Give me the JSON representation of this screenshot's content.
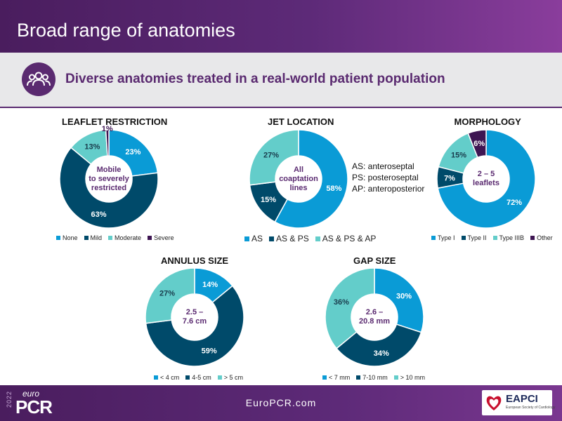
{
  "header": {
    "title": "Broad range of anatomies"
  },
  "band": {
    "subtitle": "Diverse anatomies treated in a real-world patient population",
    "icon": "people-group-icon"
  },
  "colors": {
    "dark": "#004a6a",
    "mid": "#0a9bd6",
    "light": "#63cdca",
    "purple": "#3e1552"
  },
  "chart_data": [
    {
      "type": "pie",
      "title": "LEAFLET RESTRICTION",
      "center_label": [
        "Mobile",
        "to severely",
        "restricted"
      ],
      "categories": [
        "None",
        "Mild",
        "Moderate",
        "Severe"
      ],
      "values": [
        23,
        63,
        13,
        1
      ],
      "labels": [
        "23%",
        "63%",
        "13%",
        "1%"
      ],
      "colors": [
        "#0a9bd6",
        "#004a6a",
        "#63cdca",
        "#3e1552"
      ],
      "legend": "bottom"
    },
    {
      "type": "pie",
      "title": "JET LOCATION",
      "center_label": [
        "All",
        "coaptation",
        "lines"
      ],
      "categories": [
        "AS",
        "AS & PS",
        "AS & PS & AP"
      ],
      "values": [
        58,
        15,
        27
      ],
      "labels": [
        "58%",
        "15%",
        "27%"
      ],
      "colors": [
        "#0a9bd6",
        "#004a6a",
        "#63cdca"
      ],
      "legend": "bottom",
      "annotations": [
        "AS: anteroseptal",
        "PS: posteroseptal",
        "AP: anteroposterior"
      ]
    },
    {
      "type": "pie",
      "title": "MORPHOLOGY",
      "center_label": [
        "2 – 5",
        "leaflets"
      ],
      "categories": [
        "Type I",
        "Type II",
        "Type IIIB",
        "Other"
      ],
      "values": [
        72,
        7,
        15,
        6
      ],
      "labels": [
        "72%",
        "7%",
        "15%",
        "6%"
      ],
      "colors": [
        "#0a9bd6",
        "#004a6a",
        "#63cdca",
        "#3e1552"
      ],
      "legend": "bottom"
    },
    {
      "type": "pie",
      "title": "ANNULUS SIZE",
      "center_label": [
        "2.5 –",
        "7.6 cm"
      ],
      "categories": [
        "< 4 cm",
        "4-5 cm",
        "> 5 cm"
      ],
      "values": [
        14,
        59,
        27
      ],
      "labels": [
        "14%",
        "59%",
        "27%"
      ],
      "colors": [
        "#0a9bd6",
        "#004a6a",
        "#63cdca"
      ],
      "legend": "bottom"
    },
    {
      "type": "pie",
      "title": "GAP SIZE",
      "center_label": [
        "2.6 –",
        "20.8 mm"
      ],
      "categories": [
        "< 7 mm",
        "7-10 mm",
        "> 10 mm"
      ],
      "values": [
        30,
        34,
        36
      ],
      "labels": [
        "30%",
        "34%",
        "36%"
      ],
      "colors": [
        "#0a9bd6",
        "#004a6a",
        "#63cdca"
      ],
      "legend": "bottom"
    }
  ],
  "footer": {
    "url": "EuroPCR.com",
    "year": "2022",
    "brand_small": "euro",
    "brand_big": "PCR",
    "partner": "EAPCI",
    "partner_sub": "European Society of Cardiology"
  }
}
